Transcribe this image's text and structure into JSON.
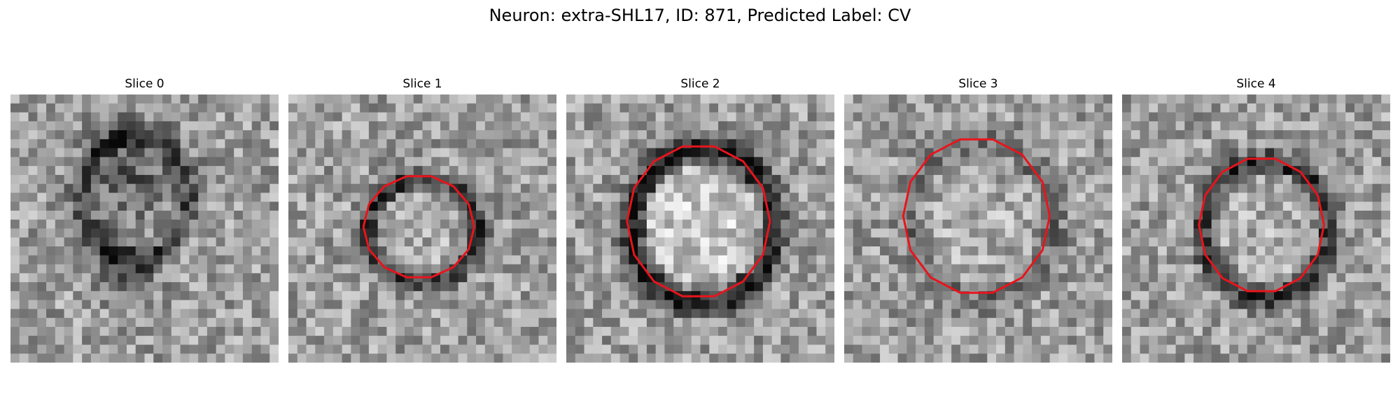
{
  "figure": {
    "title": "Neuron: extra-SHL17, ID: 871, Predicted Label: CV"
  },
  "panels": [
    {
      "title": "Slice 0",
      "seed": 11,
      "ring": 0.55,
      "contour": null
    },
    {
      "title": "Slice 1",
      "seed": 23,
      "ring": 0.75,
      "contour": "small"
    },
    {
      "title": "Slice 2",
      "seed": 37,
      "ring": 0.95,
      "contour": "large"
    },
    {
      "title": "Slice 3",
      "seed": 41,
      "ring": 0.35,
      "contour": "medium"
    },
    {
      "title": "Slice 4",
      "seed": 59,
      "ring": 0.8,
      "contour": "ring"
    }
  ],
  "colors": {
    "contour": "#e8141c"
  }
}
